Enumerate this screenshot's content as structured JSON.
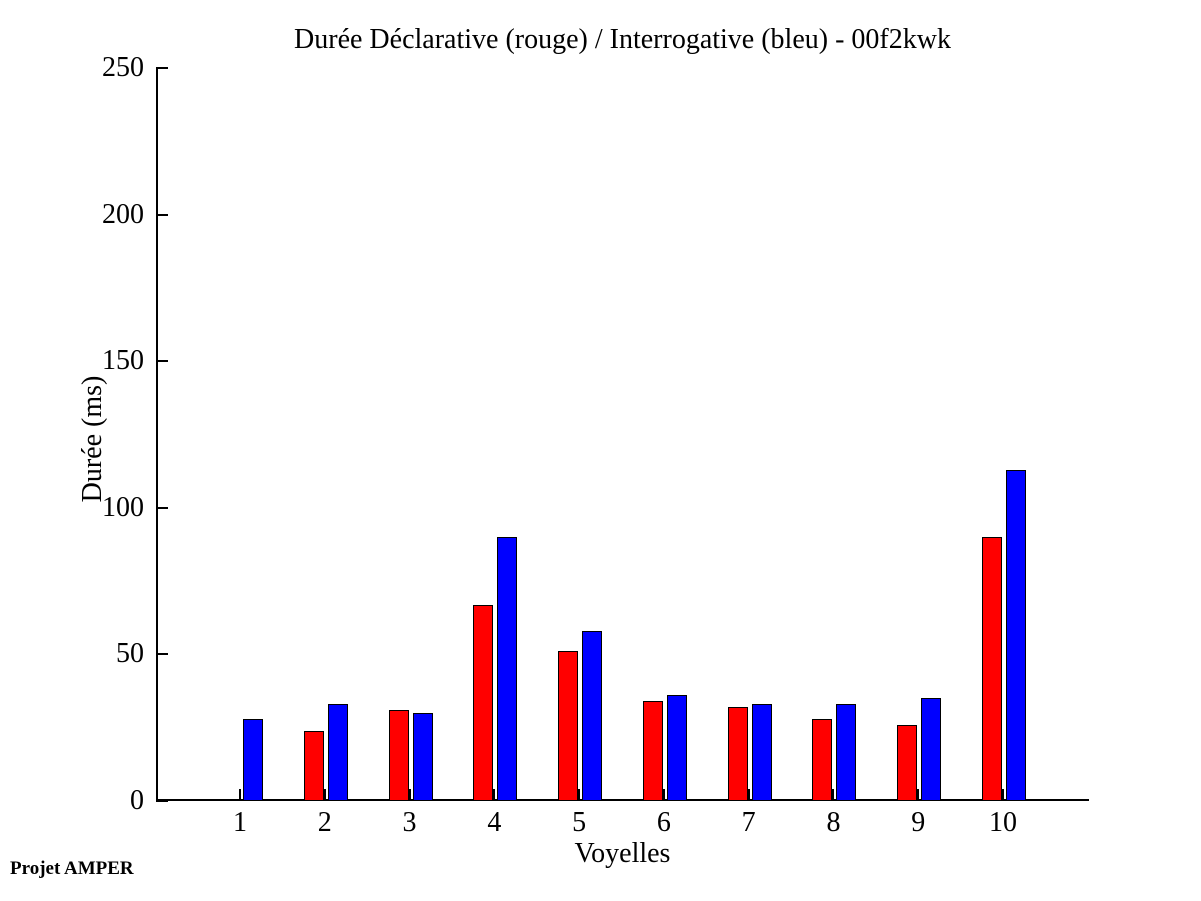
{
  "footer": {
    "text": "Projet AMPER"
  },
  "chart_data": {
    "type": "bar",
    "title": "Durée Déclarative (rouge) / Interrogative (bleu) - 00f2kwk",
    "xlabel": "Voyelles",
    "ylabel": "Durée (ms)",
    "categories": [
      "1",
      "2",
      "3",
      "4",
      "5",
      "6",
      "7",
      "8",
      "9",
      "10"
    ],
    "series": [
      {
        "name": "Déclarative",
        "color": "#ff0000",
        "values": [
          0,
          24,
          31,
          67,
          51,
          34,
          32,
          28,
          26,
          90
        ]
      },
      {
        "name": "Interrogative",
        "color": "#0000ff",
        "values": [
          28,
          33,
          30,
          90,
          58,
          36,
          33,
          33,
          35,
          113
        ]
      }
    ],
    "ylim": [
      0,
      250
    ],
    "yticks": [
      0,
      50,
      100,
      150,
      200,
      250
    ],
    "grid": false,
    "legend_position": "none",
    "axis_color": "#000000",
    "background_color": "#ffffff"
  }
}
